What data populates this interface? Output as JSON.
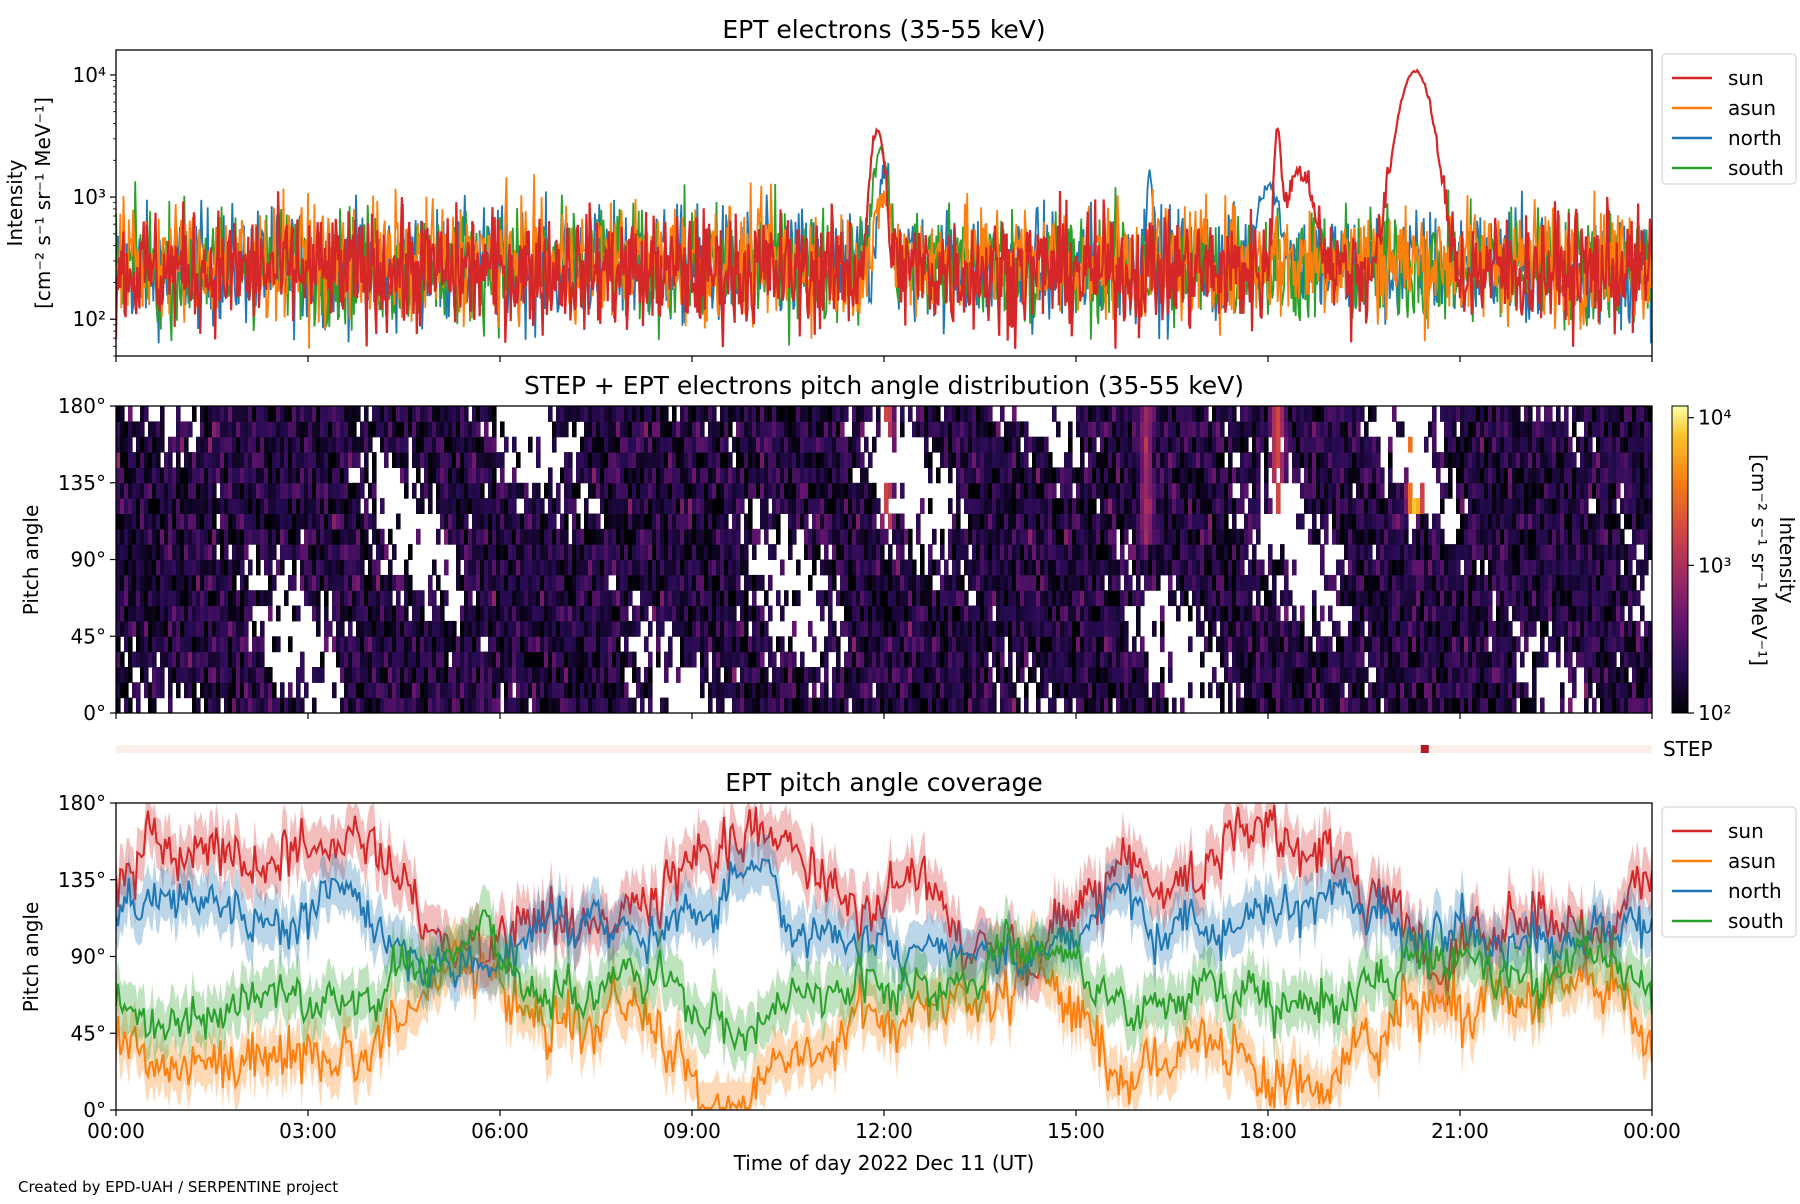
{
  "credit": "Created by EPD-UAH / SERPENTINE project",
  "x_axis_label": "Time of day 2022 Dec 11 (UT)",
  "x_ticks": [
    "00:00",
    "03:00",
    "06:00",
    "09:00",
    "12:00",
    "15:00",
    "18:00",
    "21:00",
    "00:00"
  ],
  "colors": {
    "sun": "#d62728",
    "asun": "#ff7f0e",
    "north": "#1f77b4",
    "south": "#2ca02c",
    "step_strip": "#fcefe8",
    "step_mark": "#b2182b"
  },
  "chart_data": [
    {
      "type": "line",
      "title": "EPT electrons (35-55 keV)",
      "ylabel_line1": "Intensity",
      "ylabel_line2": "[cm⁻² s⁻¹ sr⁻¹ MeV⁻¹]",
      "yscale": "log",
      "ylim": [
        50,
        16000
      ],
      "y_ticks": [
        "10²",
        "10³",
        "10⁴"
      ],
      "x_unit": "hours",
      "xlim": [
        0,
        24
      ],
      "legend": "outside-right",
      "series": [
        {
          "name": "sun",
          "baseline": 250,
          "peaks": [
            [
              11.9,
              3300,
              0.12
            ],
            [
              18.15,
              3300,
              0.06
            ],
            [
              18.5,
              1300,
              0.25
            ],
            [
              20.3,
              10500,
              0.28
            ]
          ]
        },
        {
          "name": "asun",
          "baseline": 300,
          "peaks": [
            [
              12.0,
              700,
              0.1
            ]
          ]
        },
        {
          "name": "north",
          "baseline": 270,
          "peaks": [
            [
              12.0,
              1300,
              0.1
            ],
            [
              16.15,
              1500,
              0.05
            ],
            [
              18.0,
              1000,
              0.2
            ]
          ]
        },
        {
          "name": "south",
          "baseline": 270,
          "peaks": [
            [
              11.95,
              2200,
              0.12
            ]
          ]
        }
      ]
    },
    {
      "type": "heatmap",
      "title": "STEP + EPT electrons pitch angle distribution (35-55 keV)",
      "ylabel": "Pitch angle",
      "y_ticks": [
        "0°",
        "45°",
        "90°",
        "135°",
        "180°"
      ],
      "ylim": [
        0,
        180
      ],
      "colorbar_label": "Intensity",
      "colorbar_unit": "[cm⁻² s⁻¹ sr⁻¹ MeV⁻¹]",
      "colorbar_ticks": [
        "10²",
        "10³",
        "10⁴"
      ],
      "colorbar_range": [
        100,
        12000
      ],
      "colormap": "inferno",
      "bright_regions": [
        [
          12.05,
          150,
          1500
        ],
        [
          16.1,
          140,
          700
        ],
        [
          18.15,
          135,
          1500
        ],
        [
          20.3,
          160,
          8000
        ]
      ]
    },
    {
      "type": "line",
      "title": "EPT pitch angle coverage",
      "ylabel": "Pitch angle",
      "y_ticks": [
        "0°",
        "45°",
        "90°",
        "135°",
        "180°"
      ],
      "ylim": [
        0,
        180
      ],
      "legend": "outside-right",
      "band_halfwidth_deg": 15,
      "series": [
        {
          "name": "sun",
          "mean": 130
        },
        {
          "name": "asun",
          "mean": 45
        },
        {
          "name": "north",
          "mean": 110
        },
        {
          "name": "south",
          "mean": 75
        }
      ]
    }
  ],
  "step_label": "STEP",
  "step_mark_hour": 20.45
}
